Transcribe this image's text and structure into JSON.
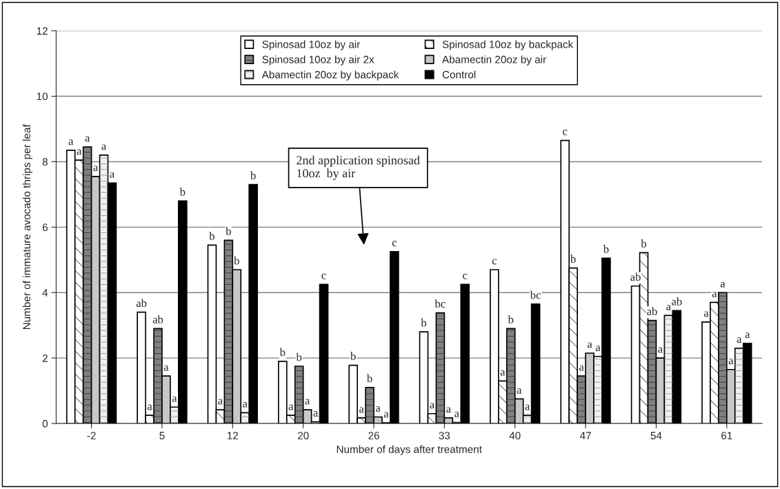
{
  "chart_data": {
    "type": "bar",
    "xlabel": "Number of days after treatment",
    "ylabel": "Number of immature avocado thrips per leaf",
    "categories": [
      "-2",
      "5",
      "12",
      "20",
      "26",
      "33",
      "40",
      "47",
      "54",
      "61"
    ],
    "series": [
      {
        "name": "Spinosad 10oz by air",
        "color": "#ffffff",
        "values": [
          8.35,
          3.4,
          5.45,
          1.9,
          1.78,
          2.8,
          4.7,
          8.65,
          4.2,
          3.1
        ],
        "value_labels": [
          "a",
          "ab",
          "b",
          "b",
          "b",
          "b",
          "c",
          "c",
          "ab",
          "a"
        ]
      },
      {
        "name": "Spinosad 10oz by backpack",
        "color": "#ffffff",
        "values": [
          8.05,
          0.25,
          0.42,
          0.25,
          0.17,
          0.3,
          1.3,
          4.75,
          5.22,
          3.7
        ],
        "value_labels": [
          "a",
          "a",
          "a",
          "a",
          "a",
          "a",
          "a",
          "b",
          "b",
          "a"
        ]
      },
      {
        "name": "Spinosad 10oz by air 2x",
        "color": "#808080",
        "values": [
          8.45,
          2.9,
          5.6,
          1.75,
          1.1,
          3.38,
          2.9,
          1.45,
          3.15,
          4.0
        ],
        "value_labels": [
          "a",
          "ab",
          "b",
          "b",
          "b",
          "bc",
          "b",
          "a",
          "ab",
          "a"
        ]
      },
      {
        "name": "Abamectin 20oz by air",
        "color": "#c8c8c8",
        "values": [
          7.55,
          1.45,
          4.7,
          0.42,
          0.2,
          0.17,
          0.75,
          2.15,
          2.0,
          1.65
        ],
        "value_labels": [
          "a",
          "a",
          "b",
          "a",
          "a",
          "a",
          "a",
          "a",
          "a",
          "a"
        ]
      },
      {
        "name": "Abamectin 20oz by backpack",
        "color": "#f0f0f0",
        "values": [
          8.2,
          0.5,
          0.33,
          0.05,
          0.02,
          0.03,
          0.25,
          2.05,
          3.3,
          2.3
        ],
        "value_labels": [
          "a",
          "a",
          "a",
          "a",
          "a",
          "a",
          "a",
          "a",
          "a",
          "a"
        ]
      },
      {
        "name": "Control",
        "color": "#000000",
        "values": [
          7.35,
          6.8,
          7.3,
          4.25,
          5.25,
          4.25,
          3.65,
          5.05,
          3.45,
          2.45
        ],
        "value_labels": [
          "a",
          "b",
          "b",
          "c",
          "c",
          "c",
          "bc",
          "b",
          "ab",
          "a"
        ]
      }
    ],
    "ylim": [
      0,
      12
    ],
    "yticks": [
      0,
      2,
      4,
      6,
      8,
      10,
      12
    ],
    "grid": "y",
    "legend": "top",
    "annotations": [
      "2nd application spinosad\n10oz  by air"
    ]
  }
}
